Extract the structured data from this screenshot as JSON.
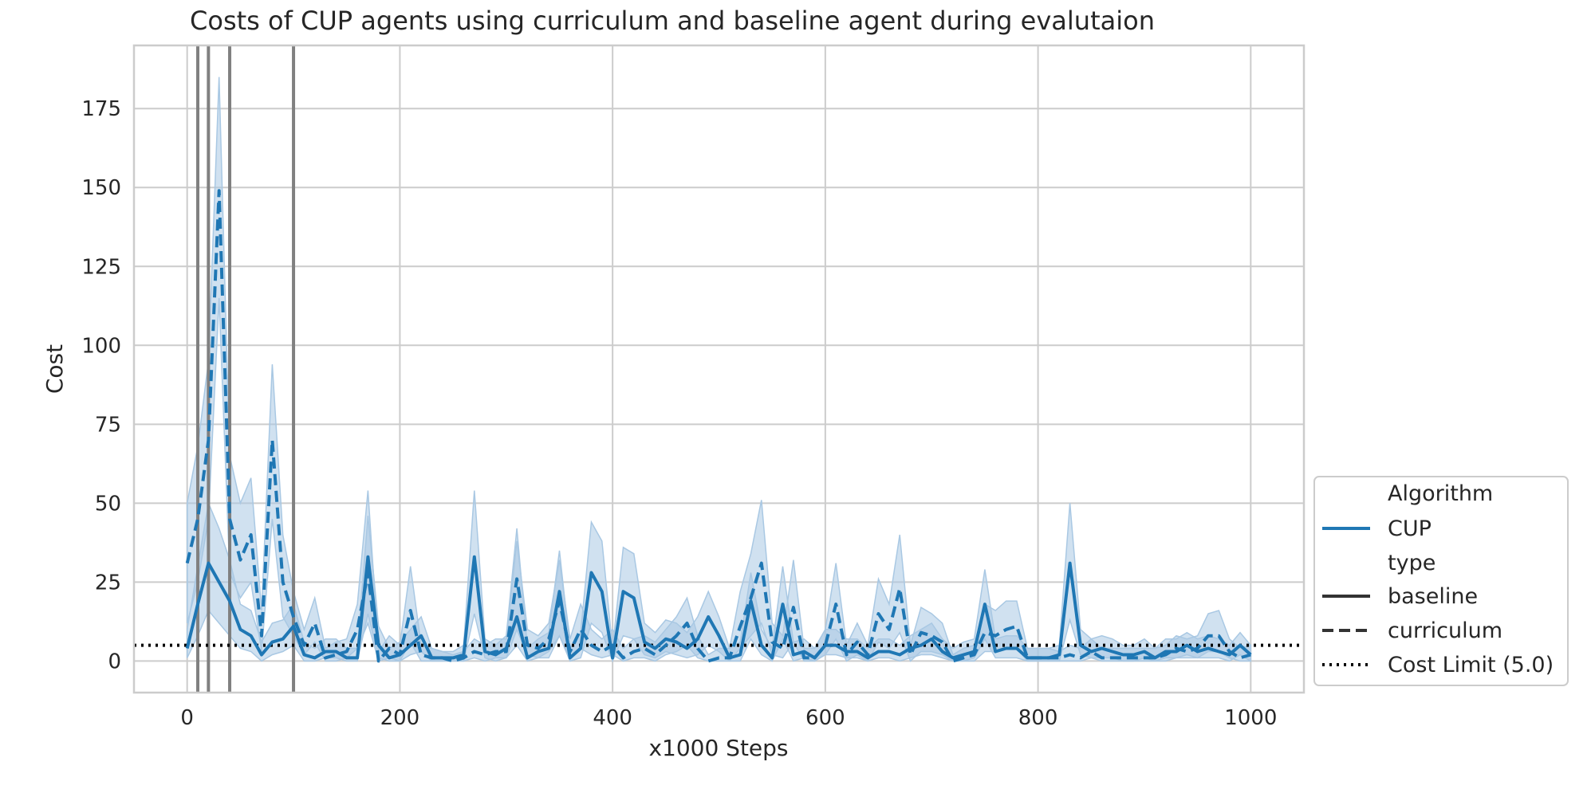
{
  "chart_data": {
    "type": "line",
    "title": "Costs of CUP agents using curriculum and baseline agent during evalutaion",
    "xlabel": "x1000 Steps",
    "ylabel": "Cost",
    "xlim": [
      -50,
      1050
    ],
    "ylim": [
      -10,
      195
    ],
    "xticks": [
      0,
      200,
      400,
      600,
      800,
      1000
    ],
    "yticks": [
      0,
      25,
      50,
      75,
      100,
      125,
      150,
      175
    ],
    "grid": true,
    "legend_position": "lower-right outside",
    "cost_limit": 5.0,
    "vertical_lines": [
      10,
      20,
      40,
      100
    ],
    "legend": {
      "algorithm_header": "Algorithm",
      "algorithm_entry": "CUP",
      "type_header": "type",
      "baseline_label": "baseline",
      "curriculum_label": "curriculum",
      "limit_label": "Cost Limit (5.0)"
    },
    "colors": {
      "series": "#1f77b4",
      "band": "#a9c8e3",
      "vline": "#808080",
      "limit": "#000000",
      "legend_dark": "#333333"
    },
    "series": [
      {
        "name": "baseline",
        "style": "solid",
        "x": [
          0,
          10,
          20,
          30,
          40,
          50,
          60,
          70,
          80,
          90,
          100,
          110,
          120,
          130,
          140,
          150,
          160,
          170,
          180,
          190,
          200,
          210,
          220,
          230,
          240,
          250,
          260,
          270,
          280,
          290,
          300,
          310,
          320,
          330,
          340,
          350,
          360,
          370,
          380,
          390,
          400,
          410,
          420,
          430,
          440,
          450,
          460,
          470,
          480,
          490,
          500,
          510,
          520,
          530,
          540,
          550,
          560,
          570,
          580,
          590,
          600,
          610,
          620,
          630,
          640,
          650,
          660,
          670,
          680,
          690,
          700,
          710,
          720,
          730,
          740,
          750,
          760,
          770,
          780,
          790,
          800,
          810,
          820,
          830,
          840,
          850,
          860,
          870,
          880,
          890,
          900,
          910,
          920,
          930,
          940,
          950,
          960,
          970,
          980,
          990,
          1000
        ],
        "y": [
          4,
          18,
          31,
          25,
          19,
          10,
          8,
          2,
          6,
          7,
          11,
          2,
          1,
          3,
          3,
          1,
          1,
          33,
          5,
          1,
          2,
          5,
          8,
          1,
          1,
          1,
          2,
          33,
          3,
          2,
          4,
          14,
          1,
          3,
          4,
          22,
          1,
          4,
          28,
          22,
          1,
          22,
          20,
          6,
          4,
          7,
          6,
          4,
          7,
          14,
          8,
          1,
          2,
          19,
          5,
          1,
          18,
          2,
          3,
          1,
          5,
          5,
          3,
          3,
          1,
          3,
          3,
          2,
          4,
          5,
          7,
          3,
          1,
          2,
          3,
          18,
          3,
          4,
          4,
          1,
          1,
          1,
          2,
          31,
          5,
          3,
          4,
          3,
          2,
          2,
          3,
          1,
          3,
          3,
          5,
          3,
          4,
          3,
          2,
          5,
          2
        ],
        "lower": [
          1,
          8,
          16,
          12,
          8,
          4,
          3,
          0,
          2,
          3,
          5,
          0,
          0,
          1,
          1,
          0,
          0,
          15,
          1,
          0,
          0,
          2,
          3,
          0,
          0,
          0,
          0,
          15,
          1,
          0,
          1,
          5,
          0,
          1,
          1,
          8,
          0,
          1,
          12,
          9,
          0,
          8,
          7,
          2,
          1,
          3,
          2,
          1,
          2,
          5,
          3,
          0,
          0,
          7,
          2,
          0,
          7,
          0,
          1,
          0,
          2,
          2,
          1,
          1,
          0,
          1,
          1,
          0,
          1,
          2,
          2,
          1,
          0,
          0,
          1,
          7,
          1,
          1,
          1,
          0,
          0,
          0,
          0,
          13,
          2,
          1,
          1,
          1,
          0,
          0,
          1,
          0,
          1,
          1,
          2,
          1,
          1,
          1,
          0,
          2,
          0
        ],
        "upper": [
          10,
          30,
          50,
          42,
          32,
          18,
          16,
          6,
          12,
          13,
          18,
          6,
          4,
          7,
          7,
          4,
          4,
          46,
          11,
          4,
          6,
          10,
          14,
          4,
          3,
          3,
          5,
          54,
          7,
          5,
          8,
          42,
          4,
          7,
          9,
          35,
          4,
          9,
          44,
          38,
          4,
          36,
          34,
          12,
          9,
          13,
          12,
          9,
          14,
          22,
          14,
          4,
          6,
          28,
          10,
          4,
          30,
          6,
          7,
          4,
          10,
          10,
          7,
          7,
          4,
          7,
          7,
          5,
          8,
          10,
          12,
          7,
          4,
          6,
          7,
          29,
          7,
          8,
          8,
          4,
          4,
          4,
          5,
          50,
          10,
          7,
          8,
          7,
          5,
          5,
          7,
          4,
          7,
          7,
          9,
          7,
          8,
          7,
          5,
          9,
          5
        ]
      },
      {
        "name": "curriculum",
        "style": "dashed",
        "x": [
          0,
          10,
          20,
          30,
          40,
          50,
          60,
          70,
          80,
          90,
          100,
          110,
          120,
          130,
          140,
          150,
          160,
          170,
          180,
          190,
          200,
          210,
          220,
          230,
          240,
          250,
          260,
          270,
          280,
          290,
          300,
          310,
          320,
          330,
          340,
          350,
          360,
          370,
          380,
          390,
          400,
          410,
          420,
          430,
          440,
          450,
          460,
          470,
          480,
          490,
          500,
          510,
          520,
          530,
          540,
          550,
          560,
          570,
          580,
          590,
          600,
          610,
          620,
          630,
          640,
          650,
          660,
          670,
          680,
          690,
          700,
          710,
          720,
          730,
          740,
          750,
          760,
          770,
          780,
          790,
          800,
          810,
          820,
          830,
          840,
          850,
          860,
          870,
          880,
          890,
          900,
          910,
          920,
          930,
          940,
          950,
          960,
          970,
          980,
          990,
          1000
        ],
        "y": [
          31,
          45,
          70,
          149,
          45,
          32,
          40,
          8,
          70,
          25,
          14,
          5,
          12,
          1,
          2,
          3,
          10,
          28,
          0,
          4,
          2,
          16,
          2,
          1,
          1,
          0,
          1,
          3,
          2,
          3,
          3,
          26,
          5,
          4,
          7,
          19,
          3,
          10,
          5,
          3,
          5,
          1,
          3,
          4,
          2,
          5,
          8,
          12,
          4,
          0,
          1,
          1,
          11,
          20,
          31,
          6,
          4,
          17,
          1,
          1,
          5,
          18,
          2,
          6,
          2,
          15,
          10,
          23,
          2,
          9,
          8,
          6,
          0,
          1,
          2,
          9,
          8,
          10,
          11,
          1,
          1,
          1,
          1,
          2,
          1,
          3,
          1,
          1,
          1,
          1,
          1,
          1,
          2,
          4,
          3,
          4,
          8,
          8,
          3,
          1,
          2
        ],
        "lower": [
          12,
          25,
          45,
          115,
          28,
          20,
          25,
          3,
          45,
          14,
          8,
          2,
          6,
          0,
          0,
          1,
          4,
          12,
          0,
          1,
          0,
          6,
          0,
          0,
          0,
          0,
          0,
          1,
          0,
          1,
          1,
          10,
          2,
          1,
          3,
          8,
          1,
          4,
          2,
          1,
          2,
          0,
          1,
          1,
          0,
          2,
          3,
          5,
          1,
          0,
          0,
          0,
          4,
          8,
          12,
          2,
          1,
          6,
          0,
          0,
          2,
          7,
          0,
          2,
          0,
          6,
          4,
          9,
          0,
          3,
          3,
          2,
          0,
          0,
          0,
          3,
          3,
          4,
          4,
          0,
          0,
          0,
          0,
          0,
          0,
          1,
          0,
          0,
          0,
          0,
          0,
          0,
          0,
          1,
          1,
          1,
          3,
          3,
          1,
          0,
          0
        ],
        "upper": [
          50,
          68,
          95,
          185,
          65,
          50,
          58,
          16,
          94,
          40,
          22,
          10,
          20,
          4,
          6,
          7,
          18,
          54,
          3,
          8,
          5,
          30,
          5,
          4,
          3,
          2,
          3,
          7,
          5,
          7,
          7,
          38,
          10,
          8,
          12,
          32,
          7,
          18,
          10,
          7,
          10,
          4,
          7,
          8,
          6,
          10,
          14,
          20,
          8,
          2,
          4,
          4,
          22,
          34,
          51,
          12,
          8,
          32,
          4,
          4,
          10,
          31,
          5,
          12,
          5,
          26,
          18,
          40,
          5,
          17,
          15,
          12,
          2,
          4,
          5,
          18,
          16,
          19,
          19,
          4,
          4,
          4,
          3,
          5,
          4,
          7,
          4,
          4,
          4,
          4,
          4,
          4,
          5,
          8,
          7,
          8,
          15,
          16,
          7,
          4,
          5
        ]
      }
    ]
  }
}
